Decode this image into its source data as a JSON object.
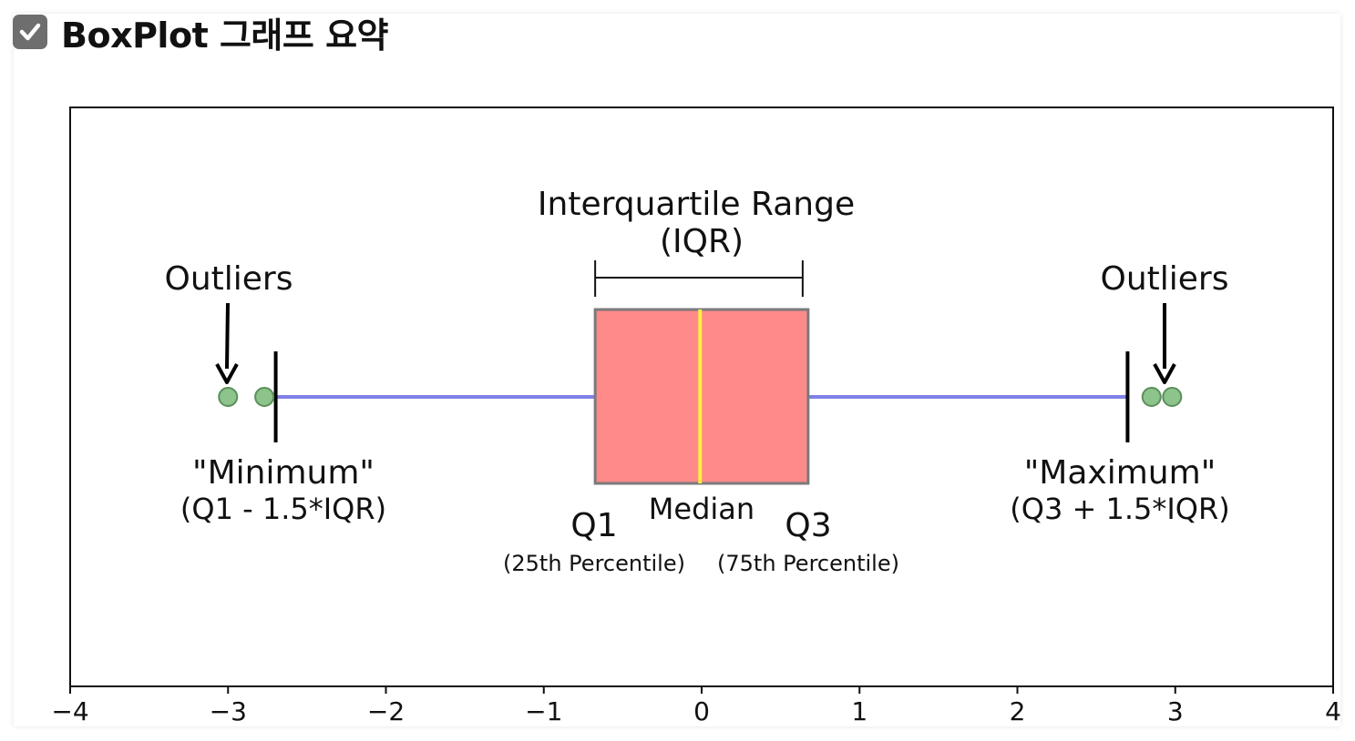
{
  "page": {
    "title": "BoxPlot 그래프 요약",
    "title_icon": "checked-checkbox-icon"
  },
  "chart_data": {
    "type": "box",
    "title": "",
    "xlabel": "",
    "ylabel": "",
    "xlim": [
      -4,
      4
    ],
    "x_ticks": [
      -4,
      -3,
      -2,
      -1,
      0,
      1,
      2,
      3,
      4
    ],
    "x_tick_labels": [
      "−4",
      "−3",
      "−2",
      "−1",
      "0",
      "1",
      "2",
      "3",
      "4"
    ],
    "grid": false,
    "box": {
      "q1": -0.6745,
      "median": -0.01,
      "q3": 0.6745,
      "whisker_low": -2.698,
      "whisker_high": 2.698
    },
    "outliers": [
      -3.0,
      -2.77,
      2.85,
      2.98
    ],
    "colors": {
      "box_fill": "#ff8a8a",
      "box_edge": "#7a7a7a",
      "median": "#ffee44",
      "whisker": "#8080e8",
      "outlier_fill": "#8cc48c",
      "outlier_edge": "#5a8f5a",
      "caps": "#000000"
    },
    "annotations": {
      "iqr_line1": "Interquartile Range",
      "iqr_line2": "(IQR)",
      "outliers_left": "Outliers",
      "outliers_right": "Outliers",
      "minimum": "\"Minimum\"",
      "minimum_formula": "(Q1 - 1.5*IQR)",
      "maximum": "\"Maximum\"",
      "maximum_formula": "(Q3 + 1.5*IQR)",
      "q1": "Q1",
      "q1_sub": "(25th Percentile)",
      "median": "Median",
      "q3": "Q3",
      "q3_sub": "(75th Percentile)"
    }
  }
}
